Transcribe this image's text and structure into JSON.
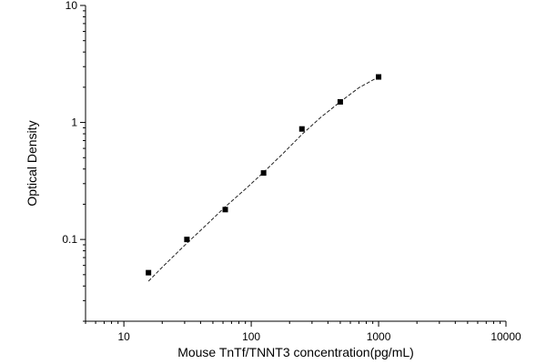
{
  "chart_data": {
    "type": "scatter",
    "xlabel": "Mouse TnTf/TNNT3 concentration(pg/mL)",
    "ylabel": "Optical Density",
    "xscale": "log",
    "yscale": "log",
    "xlim": [
      5,
      10000
    ],
    "ylim": [
      0.02,
      10
    ],
    "x_ticks": [
      10,
      100,
      1000,
      10000
    ],
    "x_tick_labels": [
      "10",
      "100",
      "1000",
      "10000"
    ],
    "y_ticks": [
      0.1,
      1,
      10
    ],
    "y_tick_labels": [
      "0.1",
      "1",
      "10"
    ],
    "grid": false,
    "series": [
      {
        "x": [
          15.6,
          31.25,
          62.5,
          125,
          250,
          500,
          1000
        ],
        "y": [
          0.052,
          0.1,
          0.18,
          0.37,
          0.88,
          1.5,
          2.45
        ]
      }
    ],
    "fit_curve": {
      "style": "dashed",
      "x": [
        15.6,
        20,
        31.25,
        45,
        62.5,
        90,
        125,
        180,
        250,
        350,
        500,
        700,
        1000
      ],
      "y": [
        0.044,
        0.058,
        0.093,
        0.135,
        0.19,
        0.27,
        0.375,
        0.55,
        0.79,
        1.1,
        1.5,
        1.98,
        2.45
      ]
    }
  }
}
